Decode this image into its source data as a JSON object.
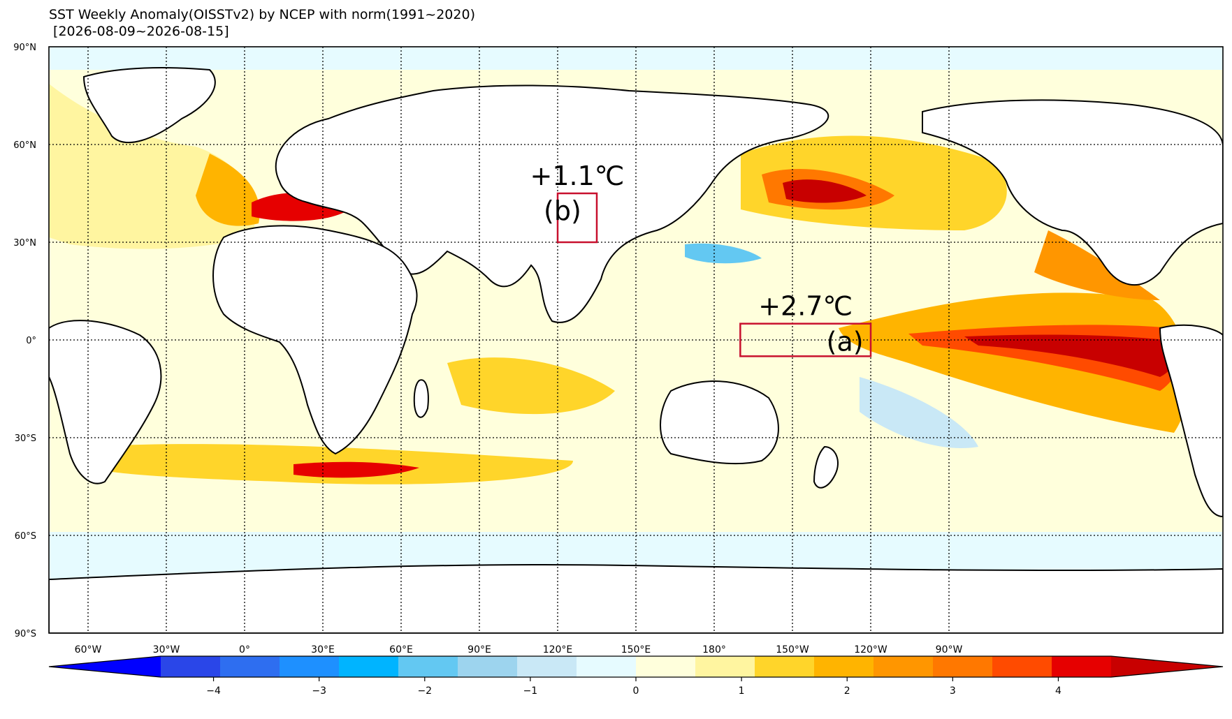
{
  "header": {
    "title": "SST Weekly Anomaly(OISSTv2) by NCEP with norm(1991~2020)",
    "period": " [2026-08-09~2026-08-15]"
  },
  "map": {
    "projection": "equirectangular",
    "center_longitude": 150,
    "lon_range": [
      -75,
      375
    ],
    "lat_range": [
      -90,
      90
    ],
    "gridlines": "dotted",
    "lat_ticks": [
      {
        "value": 90,
        "label": "90°N"
      },
      {
        "value": 60,
        "label": "60°N"
      },
      {
        "value": 30,
        "label": "30°N"
      },
      {
        "value": 0,
        "label": "0°"
      },
      {
        "value": -30,
        "label": "30°S"
      },
      {
        "value": -60,
        "label": "60°S"
      },
      {
        "value": -90,
        "label": "90°S"
      }
    ],
    "lon_ticks": [
      {
        "value": -60,
        "label": "60°W"
      },
      {
        "value": -30,
        "label": "30°W"
      },
      {
        "value": 0,
        "label": "0°"
      },
      {
        "value": 30,
        "label": "30°E"
      },
      {
        "value": 60,
        "label": "60°E"
      },
      {
        "value": 90,
        "label": "90°E"
      },
      {
        "value": 120,
        "label": "120°E"
      },
      {
        "value": 150,
        "label": "150°E"
      },
      {
        "value": 180,
        "label": "180°"
      },
      {
        "value": 210,
        "label": "150°W"
      },
      {
        "value": 240,
        "label": "120°W"
      },
      {
        "value": 270,
        "label": "90°W"
      }
    ],
    "regions": [
      {
        "id": "a",
        "label": "(a)",
        "anomaly": "+2.7℃",
        "lon": [
          190,
          240
        ],
        "lat": [
          -5,
          5
        ],
        "color": "#c8102e"
      },
      {
        "id": "b",
        "label": "(b)",
        "anomaly": "+1.1℃",
        "lon": [
          120,
          135
        ],
        "lat": [
          30,
          45
        ],
        "color": "#c8102e"
      }
    ]
  },
  "colorbar": {
    "colors": [
      "#0000ff",
      "#2a46e8",
      "#2e6ef0",
      "#1e90ff",
      "#00b4ff",
      "#63c8f2",
      "#9dd4ee",
      "#c9e8f6",
      "#e6fbff",
      "#ffffdc",
      "#fff5a0",
      "#ffd52a",
      "#ffb400",
      "#ff9600",
      "#ff7800",
      "#ff4b00",
      "#e60000",
      "#c80000"
    ],
    "ticks": [
      {
        "value": -4,
        "label": "−4"
      },
      {
        "value": -3,
        "label": "−3"
      },
      {
        "value": -2,
        "label": "−2"
      },
      {
        "value": -1,
        "label": "−1"
      },
      {
        "value": 0,
        "label": "0"
      },
      {
        "value": 1,
        "label": "1"
      },
      {
        "value": 2,
        "label": "2"
      },
      {
        "value": 3,
        "label": "3"
      },
      {
        "value": 4,
        "label": "4"
      }
    ]
  }
}
